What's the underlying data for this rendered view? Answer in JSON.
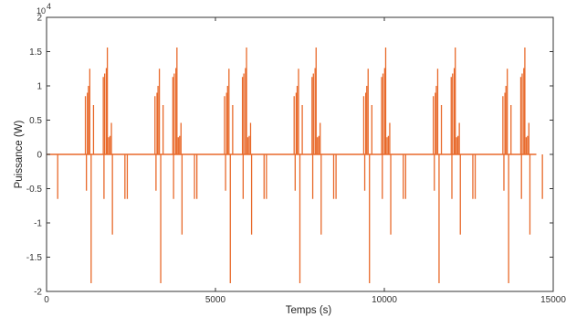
{
  "chart_data": {
    "type": "line",
    "title": "",
    "xlabel": "Temps (s)",
    "ylabel": "Puissance (W)",
    "xlim": [
      0,
      15000
    ],
    "ylim": [
      -20000,
      20000
    ],
    "xticks": [
      0,
      5000,
      10000,
      15000
    ],
    "xtick_labels": [
      "0",
      "5000",
      "10000",
      "15000"
    ],
    "yticks": [
      -20000,
      -15000,
      -10000,
      -5000,
      0,
      5000,
      10000,
      15000,
      20000
    ],
    "ytick_labels": [
      "-2",
      "-1.5",
      "-1",
      "-0.5",
      "0",
      "0.5",
      "1",
      "1.5",
      "2"
    ],
    "y_multiplier_base": "10",
    "y_multiplier_exp": "4",
    "grid": false,
    "legend": "none",
    "color": "#e8692a",
    "line_end": 14500,
    "cycle_period": 2060,
    "cycle_count": 7,
    "cycle_pattern": [
      {
        "t": 330,
        "v": -6500
      },
      {
        "t": 1150,
        "v": 8500
      },
      {
        "t": 1180,
        "v": -5300
      },
      {
        "t": 1210,
        "v": 9000
      },
      {
        "t": 1240,
        "v": 10000
      },
      {
        "t": 1280,
        "v": 12500
      },
      {
        "t": 1320,
        "v": -18800
      },
      {
        "t": 1390,
        "v": 7200
      },
      {
        "t": 1680,
        "v": 11300
      },
      {
        "t": 1700,
        "v": -6500
      },
      {
        "t": 1720,
        "v": 11800
      },
      {
        "t": 1770,
        "v": 12600
      },
      {
        "t": 1800,
        "v": 15600
      },
      {
        "t": 1840,
        "v": 2500
      },
      {
        "t": 1880,
        "v": 2700
      },
      {
        "t": 1920,
        "v": 4600
      },
      {
        "t": 1950,
        "v": -11700
      },
      {
        "t": 2320,
        "v": -6500
      }
    ]
  }
}
